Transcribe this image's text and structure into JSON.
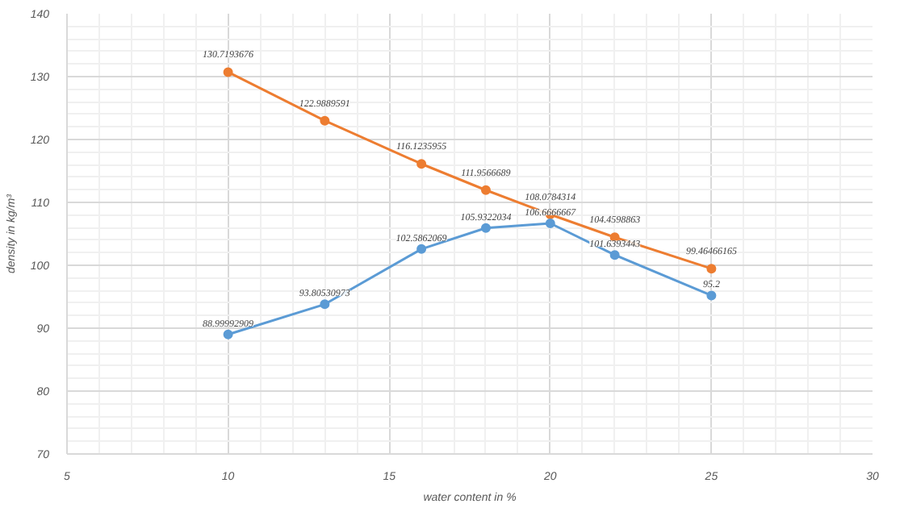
{
  "chart_data": {
    "type": "line",
    "xlabel": "water content in %",
    "ylabel": "density in kg/m³",
    "x": [
      10,
      13,
      16,
      18,
      20,
      22,
      25
    ],
    "series": [
      {
        "color": "#ed7d31",
        "values": [
          130.7193676,
          122.9889591,
          116.1235955,
          111.9566689,
          108.0784314,
          104.4598863,
          99.46466165
        ]
      },
      {
        "color": "#5b9bd5",
        "values": [
          88.99992909,
          93.80530973,
          102.5862069,
          105.9322034,
          106.6666667,
          101.6393443,
          95.2
        ]
      }
    ],
    "xlim": [
      5,
      30
    ],
    "xticks": [
      5,
      10,
      15,
      20,
      25,
      30
    ],
    "ylim": [
      70,
      140
    ],
    "yticks": [
      70,
      80,
      90,
      100,
      110,
      120,
      130,
      140
    ],
    "grid": true,
    "marker": "circle",
    "line_style": "solid",
    "data_labels": true
  }
}
